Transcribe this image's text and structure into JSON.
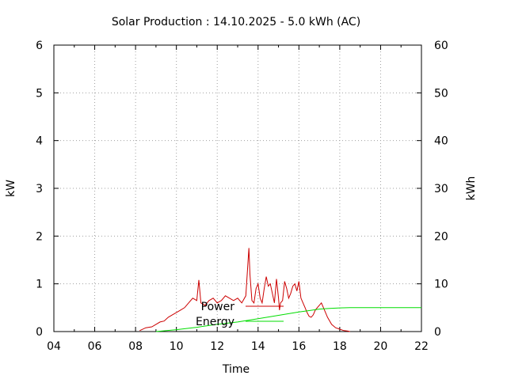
{
  "chart_data": {
    "type": "line",
    "title": "Solar Production : 14.10.2025 - 5.0 kWh (AC)",
    "xlabel": "Time",
    "ylabel": "kW",
    "y2label": "kWh",
    "xlim": [
      4,
      22
    ],
    "ylim": [
      0,
      6
    ],
    "y2lim": [
      0,
      60
    ],
    "x_ticks": [
      4,
      6,
      8,
      10,
      12,
      14,
      16,
      18,
      20,
      22
    ],
    "x_tick_labels": [
      "04",
      "06",
      "08",
      "10",
      "12",
      "14",
      "16",
      "18",
      "20",
      "22"
    ],
    "y_ticks": [
      0,
      1,
      2,
      3,
      4,
      5,
      6
    ],
    "y_tick_labels": [
      "0",
      "1",
      "2",
      "3",
      "4",
      "5",
      "6"
    ],
    "y2_ticks": [
      0,
      10,
      20,
      30,
      40,
      50,
      60
    ],
    "y2_tick_labels": [
      "0",
      "10",
      "20",
      "30",
      "40",
      "50",
      "60"
    ],
    "grid": true,
    "legend_position": "center-bottom",
    "series": [
      {
        "name": "Power",
        "axis": "left",
        "color": "#cc0000",
        "x": [
          8.2,
          8.5,
          8.8,
          9.0,
          9.2,
          9.4,
          9.6,
          9.8,
          10.0,
          10.2,
          10.4,
          10.6,
          10.8,
          11.0,
          11.1,
          11.2,
          11.4,
          11.6,
          11.8,
          12.0,
          12.2,
          12.4,
          12.6,
          12.8,
          13.0,
          13.2,
          13.4,
          13.55,
          13.6,
          13.7,
          13.8,
          13.9,
          14.0,
          14.1,
          14.2,
          14.3,
          14.4,
          14.5,
          14.6,
          14.7,
          14.8,
          14.9,
          15.0,
          15.05,
          15.1,
          15.2,
          15.3,
          15.4,
          15.5,
          15.6,
          15.7,
          15.8,
          15.9,
          16.0,
          16.1,
          16.2,
          16.3,
          16.4,
          16.5,
          16.6,
          16.7,
          16.8,
          16.9,
          17.0,
          17.1,
          17.2,
          17.4,
          17.6,
          17.8,
          18.0,
          18.2,
          18.4,
          18.5
        ],
        "values": [
          0.02,
          0.08,
          0.1,
          0.15,
          0.2,
          0.22,
          0.3,
          0.35,
          0.4,
          0.45,
          0.5,
          0.6,
          0.7,
          0.65,
          1.08,
          0.6,
          0.55,
          0.65,
          0.7,
          0.6,
          0.65,
          0.75,
          0.7,
          0.65,
          0.7,
          0.6,
          0.75,
          1.75,
          1.2,
          0.65,
          0.6,
          0.9,
          1.0,
          0.7,
          0.6,
          0.9,
          1.15,
          0.95,
          1.0,
          0.8,
          0.6,
          1.1,
          0.7,
          0.45,
          0.6,
          0.65,
          1.05,
          0.9,
          0.7,
          0.8,
          0.95,
          1.0,
          0.85,
          1.05,
          0.7,
          0.6,
          0.5,
          0.4,
          0.32,
          0.3,
          0.35,
          0.45,
          0.5,
          0.55,
          0.6,
          0.5,
          0.3,
          0.15,
          0.08,
          0.05,
          0.02,
          0.01,
          0.0
        ]
      },
      {
        "name": "Energy",
        "axis": "right",
        "color": "#00dd00",
        "x": [
          9.0,
          10.0,
          11.0,
          12.0,
          13.0,
          14.0,
          15.0,
          16.0,
          16.5,
          17.0,
          17.5,
          18.0,
          18.5,
          19.0,
          20.0,
          21.0,
          22.0
        ],
        "values": [
          0.0,
          0.4,
          0.9,
          1.5,
          2.0,
          2.7,
          3.4,
          4.1,
          4.4,
          4.7,
          4.85,
          4.95,
          5.0,
          5.0,
          5.0,
          5.0,
          5.0
        ]
      }
    ]
  }
}
